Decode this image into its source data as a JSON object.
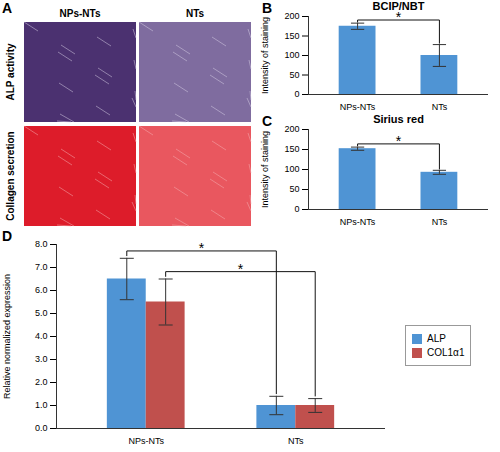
{
  "panel_a": {
    "label": "A",
    "columns": [
      "NPs-NTs",
      "NTs"
    ],
    "rows": [
      "ALP activity",
      "Collagen secretion"
    ]
  },
  "chart_data": [
    {
      "panel": "B",
      "type": "bar",
      "title": "BCIP/NBT",
      "ylabel": "Intensity of staining",
      "categories": [
        "NPs-NTs",
        "NTs"
      ],
      "values": [
        175,
        100
      ],
      "errors": [
        8,
        28
      ],
      "color": "#4f94d4",
      "ylim": [
        0,
        200
      ],
      "yticks": [
        0,
        50,
        100,
        150,
        200
      ],
      "annotations": [
        {
          "text": "*",
          "from": "NPs-NTs",
          "to": "NTs"
        }
      ]
    },
    {
      "panel": "C",
      "type": "bar",
      "title": "Sirius red",
      "ylabel": "Intensity of staining",
      "categories": [
        "NPs-NTs",
        "NTs"
      ],
      "values": [
        152,
        93
      ],
      "errors": [
        4,
        5
      ],
      "color": "#4f94d4",
      "ylim": [
        0,
        200
      ],
      "yticks": [
        0,
        50,
        100,
        150,
        200
      ],
      "annotations": [
        {
          "text": "*",
          "from": "NPs-NTs",
          "to": "NTs"
        }
      ]
    },
    {
      "panel": "D",
      "type": "bar",
      "ylabel": "Relative normalized expression",
      "categories": [
        "NPs-NTs",
        "NTs"
      ],
      "series": [
        {
          "name": "ALP",
          "color": "#4f94d4",
          "values": [
            6.5,
            1.0
          ],
          "errors": [
            0.9,
            0.4
          ]
        },
        {
          "name": "COL1α1",
          "color": "#c0504d",
          "values": [
            5.5,
            1.0
          ],
          "errors": [
            1.0,
            0.3
          ]
        }
      ],
      "ylim": [
        0,
        8
      ],
      "yticks": [
        {
          "value": 0,
          "label": "0.0"
        },
        {
          "value": 1,
          "label": "1.0"
        },
        {
          "value": 2,
          "label": "2.0"
        },
        {
          "value": 3,
          "label": "3.0"
        },
        {
          "value": 4,
          "label": "4.0"
        },
        {
          "value": 5,
          "label": "5.0"
        },
        {
          "value": 6,
          "label": "6.0"
        },
        {
          "value": 7,
          "label": "7.0"
        },
        {
          "value": 8,
          "label": "8.0"
        }
      ],
      "legend": "right",
      "annotations": [
        {
          "text": "*",
          "series": "ALP",
          "from": "NPs-NTs",
          "to": "NTs"
        },
        {
          "text": "*",
          "series": "COL1α1",
          "from": "NPs-NTs",
          "to": "NTs"
        }
      ]
    }
  ]
}
